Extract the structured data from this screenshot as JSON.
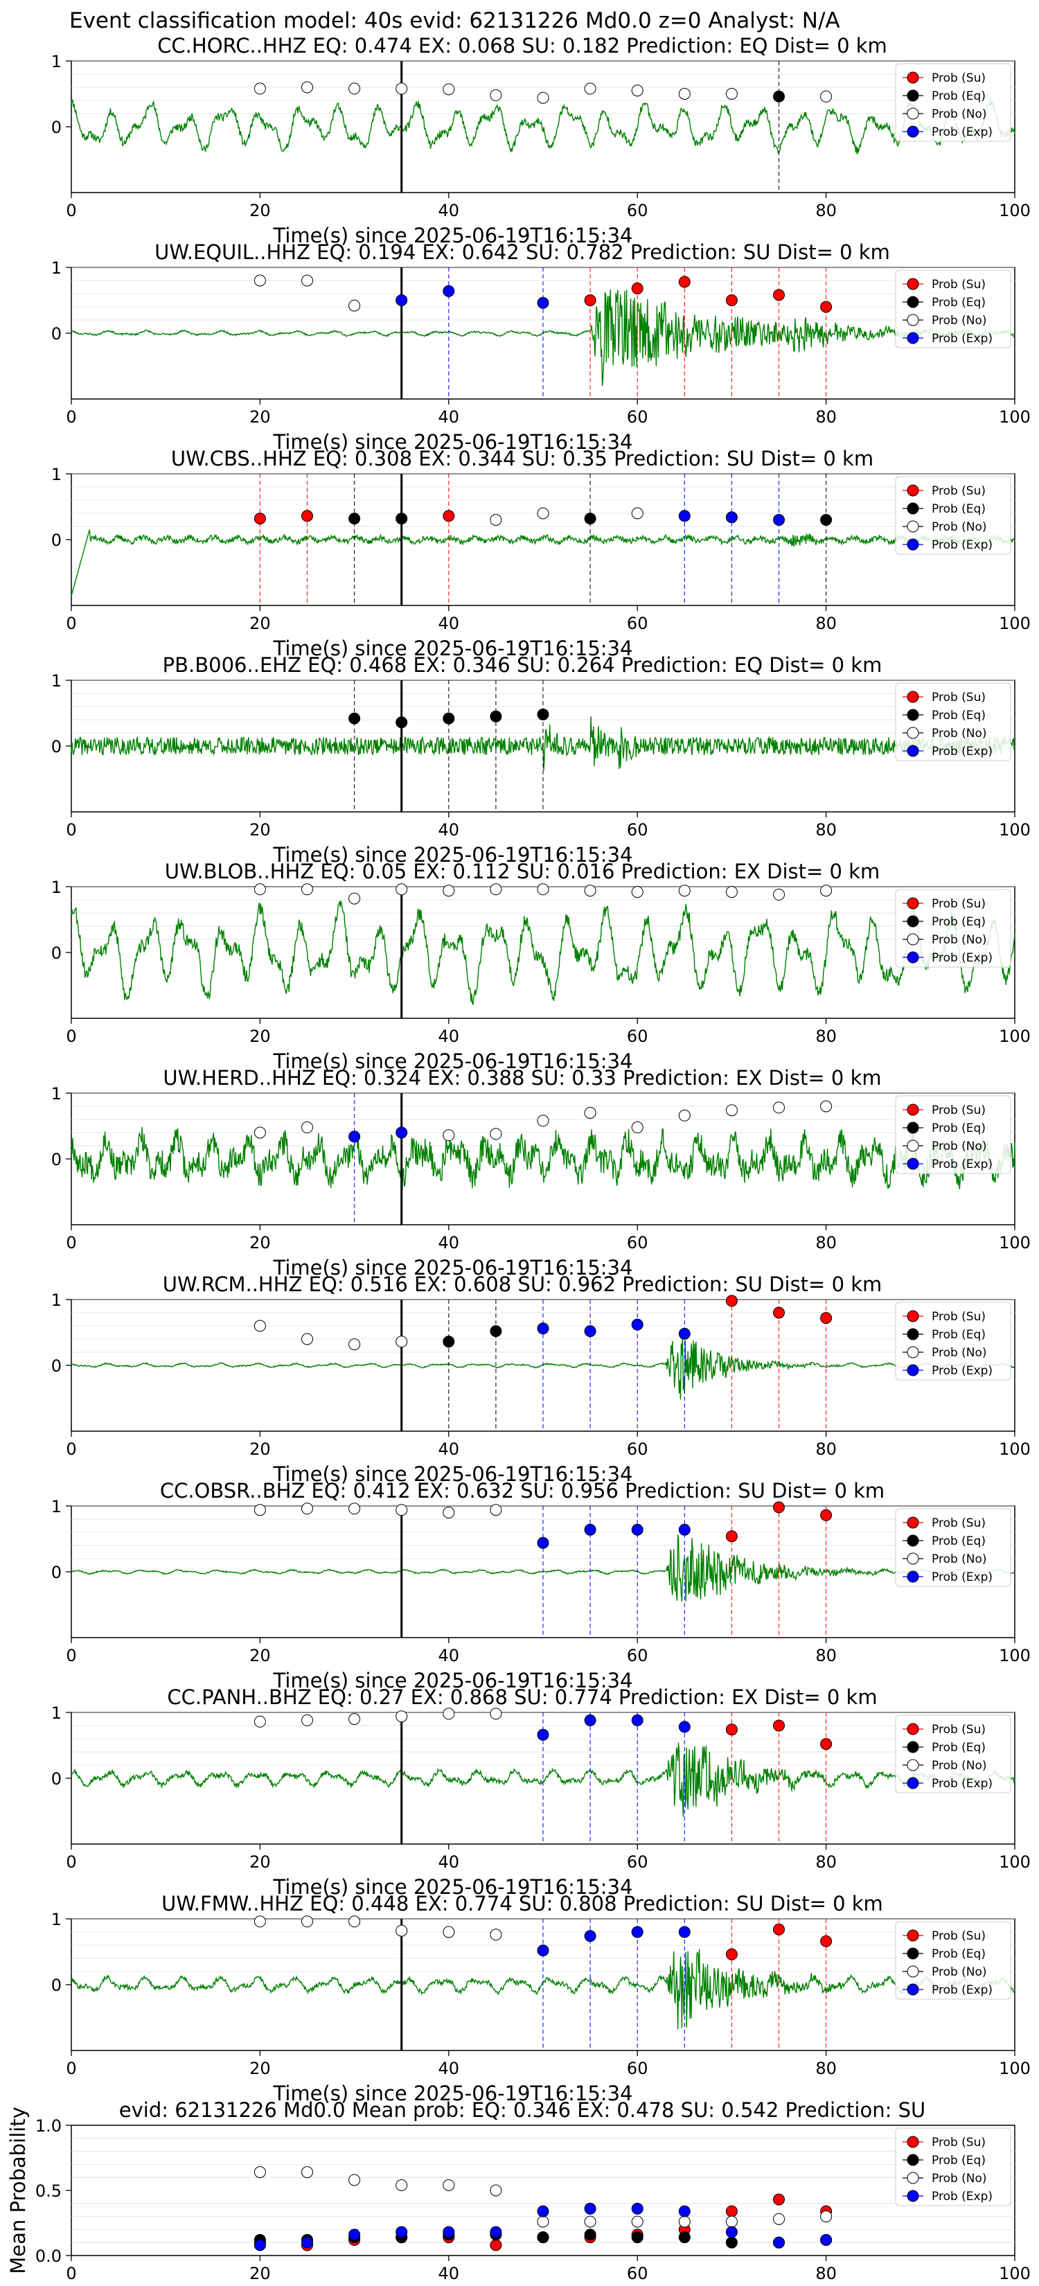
{
  "suptitle": "Event classification model: 40s evid: 62131226 Md0.0 z=0 Analyst: N/A",
  "colors": {
    "waveform": "#008000",
    "su": "#ff0000",
    "eq": "#000000",
    "no": "#ffffff",
    "exp": "#0000ff",
    "onset_line": "#000000",
    "grid": "#dddddd"
  },
  "legend": [
    {
      "key": "su",
      "label": "Prob (Su)"
    },
    {
      "key": "eq",
      "label": "Prob (Eq)"
    },
    {
      "key": "no",
      "label": "Prob (No)"
    },
    {
      "key": "exp",
      "label": "Prob (Exp)"
    }
  ],
  "chart_data": [
    {
      "type": "scatter",
      "title": "CC.HORC..HHZ   EQ: 0.474  EX: 0.068  SU: 0.182   Prediction: EQ    Dist= 0 km",
      "xlabel": "Time(s) since 2025-06-19T16:15:34",
      "ylabel": "",
      "xlim": [
        0,
        100
      ],
      "ylim": [
        -1,
        1
      ],
      "x_ticks": [
        0,
        20,
        40,
        60,
        80,
        100
      ],
      "y_ticks": [
        0,
        1
      ],
      "onset_x": 35,
      "waveform": {
        "kind": "lowfreq",
        "amp": 0.35,
        "burst_start": null,
        "seed": 11
      },
      "x": [
        20,
        25,
        30,
        35,
        40,
        45,
        50,
        55,
        60,
        65,
        70,
        75,
        80
      ],
      "classes": [
        "no",
        "no",
        "no",
        "no",
        "no",
        "no",
        "no",
        "no",
        "no",
        "no",
        "no",
        "eq",
        "no"
      ],
      "probs": [
        0.58,
        0.6,
        0.58,
        0.58,
        0.57,
        0.48,
        0.44,
        0.58,
        0.55,
        0.5,
        0.5,
        0.46,
        0.46
      ]
    },
    {
      "type": "scatter",
      "title": "UW.EQUIL..HHZ   EQ: 0.194  EX: 0.642  SU: 0.782   Prediction: SU    Dist= 0 km",
      "xlabel": "Time(s) since 2025-06-19T16:15:34",
      "ylabel": "",
      "xlim": [
        0,
        100
      ],
      "ylim": [
        -1,
        1
      ],
      "x_ticks": [
        0,
        20,
        40,
        60,
        80,
        100
      ],
      "y_ticks": [
        0,
        1
      ],
      "onset_x": 35,
      "waveform": {
        "kind": "event",
        "amp": 0.05,
        "burst_start": 55,
        "burst_amp": 0.95,
        "burst_decay": 12,
        "second_burst": 76,
        "seed": 23
      },
      "x": [
        20,
        25,
        30,
        35,
        40,
        50,
        55,
        60,
        65,
        70,
        75,
        80
      ],
      "classes": [
        "no",
        "no",
        "no",
        "exp",
        "exp",
        "exp",
        "su",
        "su",
        "su",
        "su",
        "su",
        "su"
      ],
      "probs": [
        0.8,
        0.8,
        0.42,
        0.5,
        0.64,
        0.46,
        0.5,
        0.68,
        0.78,
        0.5,
        0.58,
        0.4
      ]
    },
    {
      "type": "scatter",
      "title": "UW.CBS..HHZ   EQ: 0.308  EX: 0.344  SU: 0.35   Prediction: SU    Dist= 0 km",
      "xlabel": "Time(s) since 2025-06-19T16:15:34",
      "ylabel": "",
      "xlim": [
        0,
        100
      ],
      "ylim": [
        -1,
        1
      ],
      "x_ticks": [
        0,
        20,
        40,
        60,
        80,
        100
      ],
      "y_ticks": [
        0,
        1
      ],
      "onset_x": 35,
      "waveform": {
        "kind": "lowstart",
        "amp": 0.07,
        "burst_start": null,
        "seed": 37
      },
      "x": [
        20,
        25,
        30,
        35,
        40,
        45,
        50,
        55,
        60,
        65,
        70,
        75,
        80
      ],
      "classes": [
        "su",
        "su",
        "eq",
        "eq",
        "su",
        "no",
        "no",
        "eq",
        "no",
        "exp",
        "exp",
        "exp",
        "eq"
      ],
      "probs": [
        0.32,
        0.36,
        0.32,
        0.32,
        0.36,
        0.3,
        0.4,
        0.32,
        0.4,
        0.36,
        0.34,
        0.3,
        0.3
      ]
    },
    {
      "type": "scatter",
      "title": "PB.B006..EHZ   EQ: 0.468  EX: 0.346  SU: 0.264   Prediction: EQ    Dist= 0 km",
      "xlabel": "Time(s) since 2025-06-19T16:15:34",
      "ylabel": "",
      "xlim": [
        0,
        100
      ],
      "ylim": [
        -1,
        1
      ],
      "x_ticks": [
        0,
        20,
        40,
        60,
        80,
        100
      ],
      "y_ticks": [
        0,
        1
      ],
      "onset_x": 35,
      "waveform": {
        "kind": "noise",
        "amp": 0.22,
        "burst_start": null,
        "seed": 41,
        "spikes": [
          50,
          55,
          58
        ]
      },
      "x": [
        30,
        35,
        40,
        45,
        50
      ],
      "classes": [
        "eq",
        "eq",
        "eq",
        "eq",
        "eq"
      ],
      "probs": [
        0.42,
        0.36,
        0.42,
        0.45,
        0.48
      ]
    },
    {
      "type": "scatter",
      "title": "UW.BLOB..HHZ   EQ: 0.05  EX: 0.112  SU: 0.016   Prediction: EX    Dist= 0 km",
      "xlabel": "Time(s) since 2025-06-19T16:15:34",
      "ylabel": "",
      "xlim": [
        0,
        100
      ],
      "ylim": [
        -1,
        1
      ],
      "x_ticks": [
        0,
        20,
        40,
        60,
        80,
        100
      ],
      "y_ticks": [
        0,
        1
      ],
      "onset_x": 35,
      "waveform": {
        "kind": "lowfreq",
        "amp": 0.65,
        "burst_start": null,
        "seed": 53
      },
      "x": [
        20,
        25,
        30,
        35,
        40,
        45,
        50,
        55,
        60,
        65,
        70,
        75,
        80
      ],
      "classes": [
        "no",
        "no",
        "no",
        "no",
        "no",
        "no",
        "no",
        "no",
        "no",
        "no",
        "no",
        "no",
        "no"
      ],
      "probs": [
        0.96,
        0.96,
        0.82,
        0.96,
        0.94,
        0.96,
        0.96,
        0.94,
        0.92,
        0.94,
        0.92,
        0.88,
        0.94
      ]
    },
    {
      "type": "scatter",
      "title": "UW.HERD..HHZ   EQ: 0.324  EX: 0.388  SU: 0.33   Prediction: EX    Dist= 0 km",
      "xlabel": "Time(s) since 2025-06-19T16:15:34",
      "ylabel": "",
      "xlim": [
        0,
        100
      ],
      "ylim": [
        -1,
        1
      ],
      "x_ticks": [
        0,
        20,
        40,
        60,
        80,
        100
      ],
      "y_ticks": [
        0,
        1
      ],
      "onset_x": 35,
      "waveform": {
        "kind": "noisy",
        "amp": 0.45,
        "burst_start": null,
        "seed": 67
      },
      "x": [
        20,
        25,
        30,
        35,
        40,
        45,
        50,
        55,
        60,
        65,
        70,
        75,
        80
      ],
      "classes": [
        "no",
        "no",
        "exp",
        "exp",
        "no",
        "no",
        "no",
        "no",
        "no",
        "no",
        "no",
        "no",
        "no"
      ],
      "probs": [
        0.4,
        0.48,
        0.34,
        0.4,
        0.36,
        0.38,
        0.58,
        0.7,
        0.48,
        0.66,
        0.74,
        0.78,
        0.8
      ]
    },
    {
      "type": "scatter",
      "title": "UW.RCM..HHZ   EQ: 0.516  EX: 0.608  SU: 0.962   Prediction: SU    Dist= 0 km",
      "xlabel": "Time(s) since 2025-06-19T16:15:34",
      "ylabel": "",
      "xlim": [
        0,
        100
      ],
      "ylim": [
        -1,
        1
      ],
      "x_ticks": [
        0,
        20,
        40,
        60,
        80,
        100
      ],
      "y_ticks": [
        0,
        1
      ],
      "onset_x": 35,
      "waveform": {
        "kind": "event",
        "amp": 0.04,
        "burst_start": 63,
        "burst_amp": 0.85,
        "burst_decay": 4,
        "second_burst": null,
        "seed": 79
      },
      "x": [
        20,
        25,
        30,
        35,
        40,
        45,
        50,
        55,
        60,
        65,
        70,
        75,
        80
      ],
      "classes": [
        "no",
        "no",
        "no",
        "no",
        "eq",
        "eq",
        "exp",
        "exp",
        "exp",
        "exp",
        "su",
        "su",
        "su"
      ],
      "probs": [
        0.6,
        0.4,
        0.32,
        0.36,
        0.36,
        0.52,
        0.56,
        0.52,
        0.62,
        0.48,
        0.98,
        0.8,
        0.72
      ]
    },
    {
      "type": "scatter",
      "title": "CC.OBSR..BHZ   EQ: 0.412  EX: 0.632  SU: 0.956   Prediction: SU    Dist= 0 km",
      "xlabel": "Time(s) since 2025-06-19T16:15:34",
      "ylabel": "",
      "xlim": [
        0,
        100
      ],
      "ylim": [
        -1,
        1
      ],
      "x_ticks": [
        0,
        20,
        40,
        60,
        80,
        100
      ],
      "y_ticks": [
        0,
        1
      ],
      "onset_x": 35,
      "waveform": {
        "kind": "event",
        "amp": 0.04,
        "burst_start": 63,
        "burst_amp": 0.9,
        "burst_decay": 6,
        "second_burst": null,
        "seed": 83
      },
      "x": [
        20,
        25,
        30,
        35,
        40,
        45,
        50,
        55,
        60,
        65,
        70,
        75,
        80
      ],
      "classes": [
        "no",
        "no",
        "no",
        "no",
        "no",
        "no",
        "exp",
        "exp",
        "exp",
        "exp",
        "su",
        "su",
        "su"
      ],
      "probs": [
        0.94,
        0.96,
        0.96,
        0.94,
        0.9,
        0.94,
        0.44,
        0.64,
        0.64,
        0.64,
        0.54,
        0.98,
        0.86
      ]
    },
    {
      "type": "scatter",
      "title": "CC.PANH..BHZ   EQ: 0.27  EX: 0.868  SU: 0.774   Prediction: EX    Dist= 0 km",
      "xlabel": "Time(s) since 2025-06-19T16:15:34",
      "ylabel": "",
      "xlim": [
        0,
        100
      ],
      "ylim": [
        -1,
        1
      ],
      "x_ticks": [
        0,
        20,
        40,
        60,
        80,
        100
      ],
      "y_ticks": [
        0,
        1
      ],
      "onset_x": 35,
      "waveform": {
        "kind": "event",
        "amp": 0.15,
        "burst_start": 63,
        "burst_amp": 0.85,
        "burst_decay": 6,
        "second_burst": null,
        "seed": 97
      },
      "x": [
        20,
        25,
        30,
        35,
        40,
        45,
        50,
        55,
        60,
        65,
        70,
        75,
        80
      ],
      "classes": [
        "no",
        "no",
        "no",
        "no",
        "no",
        "no",
        "exp",
        "exp",
        "exp",
        "exp",
        "su",
        "su",
        "su"
      ],
      "probs": [
        0.86,
        0.88,
        0.9,
        0.94,
        0.98,
        0.98,
        0.66,
        0.88,
        0.88,
        0.78,
        0.74,
        0.8,
        0.52
      ]
    },
    {
      "type": "scatter",
      "title": "UW.FMW..HHZ   EQ: 0.448  EX: 0.774  SU: 0.808   Prediction: SU    Dist= 0 km",
      "xlabel": "Time(s) since 2025-06-19T16:15:34",
      "ylabel": "",
      "xlim": [
        0,
        100
      ],
      "ylim": [
        -1,
        1
      ],
      "x_ticks": [
        0,
        20,
        40,
        60,
        80,
        100
      ],
      "y_ticks": [
        0,
        1
      ],
      "onset_x": 35,
      "waveform": {
        "kind": "event",
        "amp": 0.15,
        "burst_start": 63,
        "burst_amp": 0.9,
        "burst_decay": 6,
        "second_burst": null,
        "seed": 101
      },
      "x": [
        20,
        25,
        30,
        35,
        40,
        45,
        50,
        55,
        60,
        65,
        70,
        75,
        80
      ],
      "classes": [
        "no",
        "no",
        "no",
        "no",
        "no",
        "no",
        "exp",
        "exp",
        "exp",
        "exp",
        "su",
        "su",
        "su"
      ],
      "probs": [
        0.96,
        0.96,
        0.96,
        0.82,
        0.8,
        0.76,
        0.52,
        0.74,
        0.8,
        0.8,
        0.46,
        0.84,
        0.66
      ]
    },
    {
      "type": "scatter",
      "title": "evid: 62131226  Md0.0   Mean prob:   EQ: 0.346  EX: 0.478  SU: 0.542   Prediction: SU",
      "xlabel": "",
      "ylabel": "Mean Probability",
      "xlim": [
        0,
        100
      ],
      "ylim": [
        0,
        1
      ],
      "x_ticks": [
        0,
        20,
        40,
        60,
        80,
        100
      ],
      "y_ticks": [
        0.0,
        0.5,
        1.0
      ],
      "y_tick_labels": [
        "0.0",
        "0.5",
        "1.0"
      ],
      "series": [
        {
          "name": "Prob (Su)",
          "key": "su",
          "x": [
            20,
            25,
            30,
            35,
            40,
            45,
            50,
            55,
            60,
            65,
            70,
            75,
            80
          ],
          "values": [
            0.1,
            0.08,
            0.12,
            0.14,
            0.14,
            0.08,
            0.14,
            0.14,
            0.16,
            0.2,
            0.34,
            0.43,
            0.34
          ]
        },
        {
          "name": "Prob (Eq)",
          "key": "eq",
          "x": [
            20,
            25,
            30,
            35,
            40,
            45,
            50,
            55,
            60,
            65,
            70,
            75,
            80
          ],
          "values": [
            0.12,
            0.12,
            0.14,
            0.14,
            0.16,
            0.16,
            0.14,
            0.16,
            0.14,
            0.14,
            0.1,
            0.1,
            0.12
          ]
        },
        {
          "name": "Prob (No)",
          "key": "no",
          "x": [
            20,
            25,
            30,
            35,
            40,
            45,
            50,
            55,
            60,
            65,
            70,
            75,
            80
          ],
          "values": [
            0.64,
            0.64,
            0.58,
            0.54,
            0.54,
            0.5,
            0.26,
            0.26,
            0.26,
            0.26,
            0.26,
            0.28,
            0.3
          ]
        },
        {
          "name": "Prob (Exp)",
          "key": "exp",
          "x": [
            20,
            25,
            30,
            35,
            40,
            45,
            50,
            55,
            60,
            65,
            70,
            75,
            80
          ],
          "values": [
            0.08,
            0.1,
            0.16,
            0.18,
            0.18,
            0.18,
            0.34,
            0.36,
            0.36,
            0.34,
            0.18,
            0.1,
            0.12
          ]
        }
      ]
    }
  ]
}
